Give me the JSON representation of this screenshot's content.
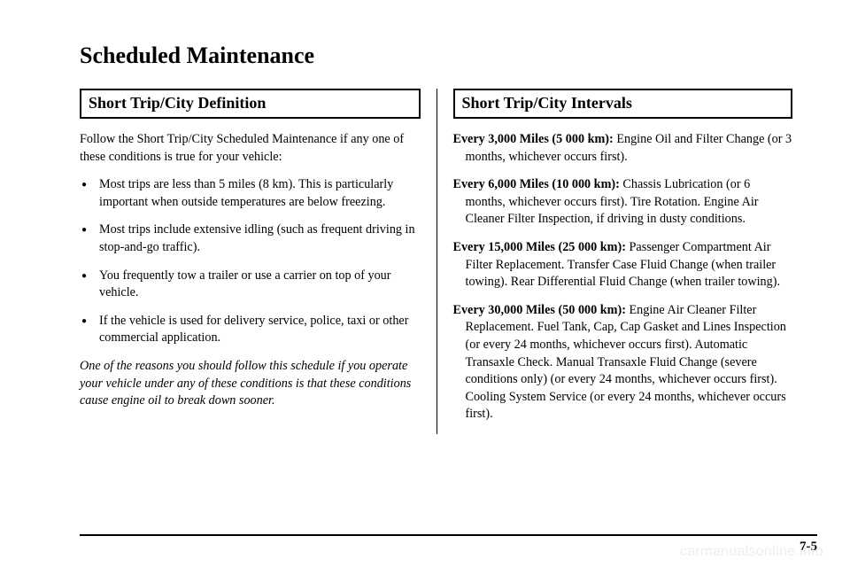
{
  "page": {
    "title": "Scheduled Maintenance",
    "page_number": "7-5",
    "watermark": "carmanualsonline.info"
  },
  "left": {
    "heading": "Short Trip/City Definition",
    "intro": "Follow the Short Trip/City Scheduled Maintenance if any one of these conditions is true for your vehicle:",
    "bullets": [
      "Most trips are less than 5 miles (8 km). This is particularly important when outside temperatures are below freezing.",
      "Most trips include extensive idling (such as frequent driving in stop-and-go traffic).",
      "You frequently tow a trailer or use a carrier on top of your vehicle.",
      "If the vehicle is used for delivery service, police, taxi or other commercial application."
    ],
    "note": "One of the reasons you should follow this schedule if you operate your vehicle under any of these conditions is that these conditions cause engine oil to break down sooner."
  },
  "right": {
    "heading": "Short Trip/City Intervals",
    "intervals": [
      {
        "lead": "Every 3,000 Miles (5 000 km):",
        "text": " Engine Oil and Filter Change (or 3 months, whichever occurs first)."
      },
      {
        "lead": "Every 6,000 Miles (10 000 km):",
        "text": " Chassis Lubrication (or 6 months, whichever occurs first). Tire Rotation. Engine Air Cleaner Filter Inspection, if driving in dusty conditions."
      },
      {
        "lead": "Every 15,000 Miles (25 000 km):",
        "text": " Passenger Compartment Air Filter Replacement. Transfer Case Fluid Change (when trailer towing). Rear Differential Fluid Change (when trailer towing)."
      },
      {
        "lead": "Every 30,000 Miles (50 000 km):",
        "text": " Engine Air Cleaner Filter Replacement. Fuel Tank, Cap, Cap Gasket and Lines Inspection (or every 24 months, whichever occurs first). Automatic Transaxle Check. Manual Transaxle Fluid Change (severe conditions only) (or every 24 months, whichever occurs first). Cooling System Service (or every 24 months, whichever occurs first)."
      }
    ]
  }
}
